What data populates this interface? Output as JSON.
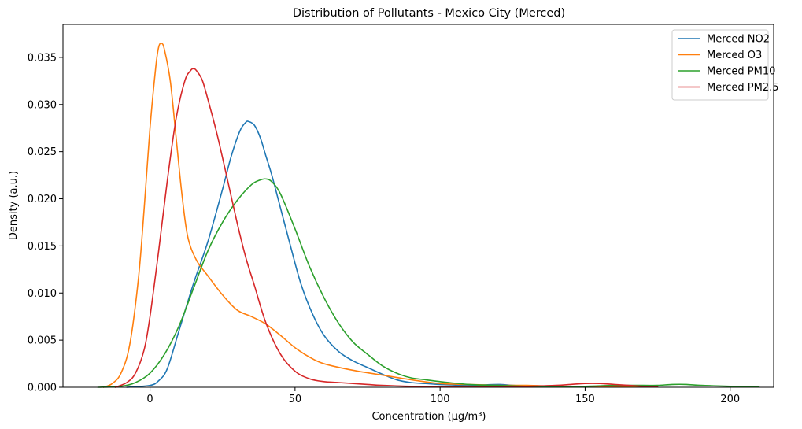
{
  "chart_data": {
    "type": "line",
    "title": "Distribution of Pollutants - Mexico City (Merced)",
    "xlabel": "Concentration (µg/m³)",
    "ylabel": "Density (a.u.)",
    "xlim": [
      -30,
      215
    ],
    "ylim": [
      0,
      0.0385
    ],
    "xticks": [
      0,
      50,
      100,
      150,
      200
    ],
    "xtick_labels": [
      "0",
      "50",
      "100",
      "150",
      "200"
    ],
    "yticks": [
      0,
      0.005,
      0.01,
      0.015,
      0.02,
      0.025,
      0.03,
      0.035
    ],
    "ytick_labels": [
      "0.000",
      "0.005",
      "0.010",
      "0.015",
      "0.020",
      "0.025",
      "0.030",
      "0.035"
    ],
    "grid": false,
    "legend_position": "top-right",
    "series": [
      {
        "name": "Merced NO2",
        "color": "#1f77b4",
        "x": [
          -8,
          0,
          3,
          6,
          10,
          15,
          20,
          25,
          28,
          31,
          33,
          34,
          36,
          38,
          40,
          42,
          45,
          48,
          52,
          56,
          60,
          65,
          70,
          75,
          80,
          85,
          90,
          95,
          100,
          110,
          120,
          125,
          130,
          140,
          150,
          160,
          170,
          175
        ],
        "y": [
          0.0,
          0.0002,
          0.0007,
          0.002,
          0.006,
          0.011,
          0.0155,
          0.021,
          0.0245,
          0.0272,
          0.0281,
          0.0282,
          0.0278,
          0.0265,
          0.0245,
          0.0225,
          0.019,
          0.0155,
          0.011,
          0.0078,
          0.0055,
          0.0038,
          0.0028,
          0.0021,
          0.0014,
          0.0008,
          0.0005,
          0.0004,
          0.0003,
          0.0002,
          0.0003,
          0.0002,
          0.0001,
          0.0001,
          0.0001,
          0.0001,
          0.0001,
          0.0001
        ]
      },
      {
        "name": "Merced O3",
        "color": "#ff7f0e",
        "x": [
          -16,
          -13,
          -10,
          -7,
          -4,
          -2,
          0,
          2,
          3,
          4,
          5,
          7,
          9,
          11,
          13,
          16,
          20,
          25,
          30,
          35,
          40,
          45,
          50,
          55,
          60,
          70,
          80,
          90,
          100,
          110,
          120,
          130,
          140,
          150,
          160,
          170,
          175
        ],
        "y": [
          0.0,
          0.0004,
          0.0015,
          0.0045,
          0.0115,
          0.019,
          0.0275,
          0.034,
          0.0361,
          0.0365,
          0.0358,
          0.0325,
          0.0265,
          0.0205,
          0.016,
          0.0135,
          0.0118,
          0.0098,
          0.0082,
          0.0075,
          0.0067,
          0.0055,
          0.0042,
          0.0032,
          0.0025,
          0.0018,
          0.0013,
          0.0008,
          0.0004,
          0.0003,
          0.0002,
          0.0002,
          0.0001,
          0.0001,
          0.0001,
          0.0001,
          0.0001
        ]
      },
      {
        "name": "Merced PM10",
        "color": "#2ca02c",
        "x": [
          -18,
          -10,
          -5,
          0,
          5,
          10,
          15,
          20,
          25,
          30,
          35,
          38,
          40,
          42,
          45,
          50,
          55,
          60,
          65,
          70,
          75,
          80,
          85,
          90,
          95,
          100,
          110,
          120,
          130,
          140,
          150,
          160,
          170,
          175,
          180,
          185,
          190,
          200,
          210
        ],
        "y": [
          0.0,
          0.0001,
          0.0005,
          0.0015,
          0.0035,
          0.0065,
          0.0105,
          0.0145,
          0.0175,
          0.0198,
          0.0215,
          0.022,
          0.0221,
          0.0218,
          0.0205,
          0.0168,
          0.0128,
          0.0095,
          0.0068,
          0.0048,
          0.0035,
          0.0023,
          0.0015,
          0.001,
          0.0008,
          0.0006,
          0.0003,
          0.0002,
          0.0001,
          0.0001,
          0.0001,
          0.0002,
          0.0002,
          0.0002,
          0.0003,
          0.0003,
          0.0002,
          0.0001,
          0.0001
        ]
      },
      {
        "name": "Merced PM2.5",
        "color": "#d62728",
        "x": [
          -12,
          -8,
          -5,
          -2,
          0,
          3,
          6,
          9,
          12,
          14,
          15,
          16,
          18,
          20,
          23,
          26,
          30,
          33,
          36,
          40,
          45,
          50,
          55,
          60,
          65,
          70,
          75,
          80,
          90,
          100,
          110,
          120,
          130,
          140,
          145,
          150,
          155,
          160,
          165,
          170,
          175
        ],
        "y": [
          0.0,
          0.0005,
          0.0015,
          0.004,
          0.0075,
          0.0145,
          0.022,
          0.0285,
          0.0325,
          0.0336,
          0.0338,
          0.0336,
          0.0326,
          0.0305,
          0.027,
          0.023,
          0.0175,
          0.0138,
          0.0108,
          0.0068,
          0.0035,
          0.0017,
          0.0009,
          0.0006,
          0.0005,
          0.0004,
          0.0003,
          0.0002,
          0.0001,
          0.0001,
          0.0001,
          0.0001,
          0.0001,
          0.0002,
          0.0003,
          0.0004,
          0.0004,
          0.0003,
          0.0002,
          0.0001,
          0.0001
        ]
      }
    ]
  }
}
